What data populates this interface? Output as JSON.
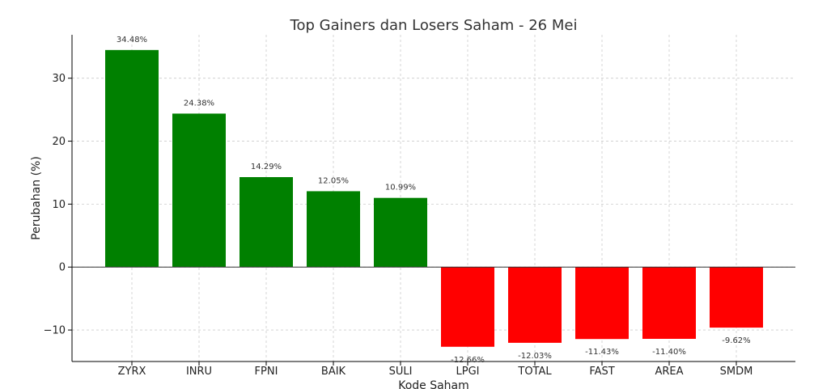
{
  "chart_data": {
    "type": "bar",
    "title": "Top Gainers dan Losers Saham - 26 Mei",
    "xlabel": "Kode Saham",
    "ylabel": "Perubahan (%)",
    "categories": [
      "ZYRX",
      "INRU",
      "FPNI",
      "BAIK",
      "SULI",
      "LPGI",
      "TOTAL",
      "FAST",
      "AREA",
      "SMDM"
    ],
    "values": [
      34.48,
      24.38,
      14.29,
      12.05,
      10.99,
      -12.66,
      -12.03,
      -11.43,
      -11.4,
      -9.62
    ],
    "data_labels": [
      "34.48%",
      "24.38%",
      "14.29%",
      "12.05%",
      "10.99%",
      "-12.66%",
      "-12.03%",
      "-11.43%",
      "-11.40%",
      "-9.62%"
    ],
    "ylim": [
      -15,
      36.9
    ],
    "yticks": [
      -10,
      0,
      10,
      20,
      30
    ],
    "ytick_labels": [
      "−10",
      "0",
      "10",
      "20",
      "30"
    ],
    "grid": true,
    "colors": {
      "positive": "#008000",
      "negative": "#ff0000"
    }
  }
}
